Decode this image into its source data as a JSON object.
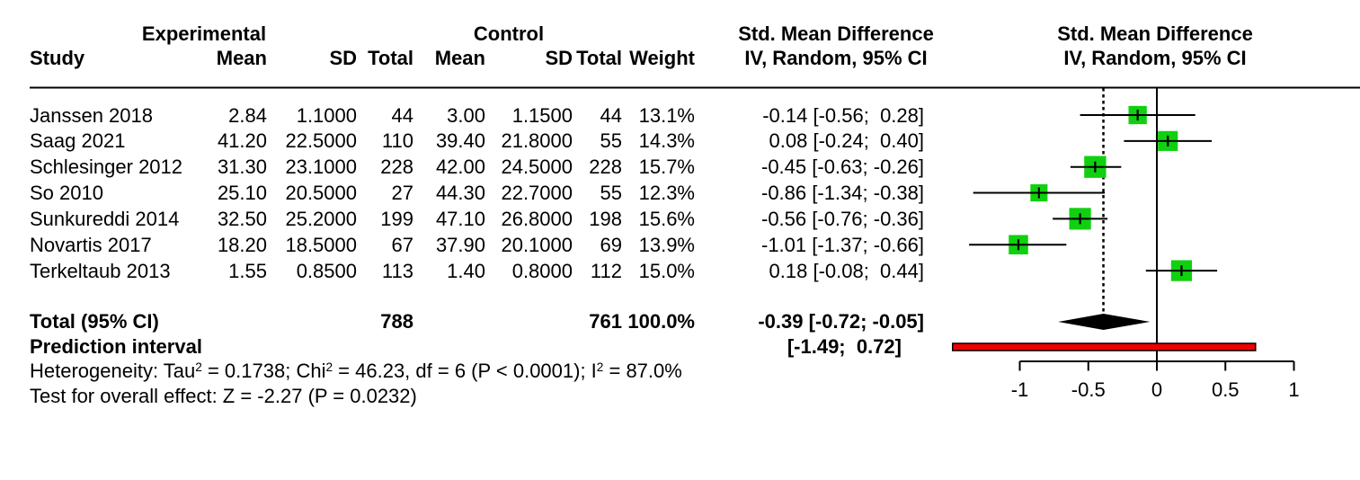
{
  "header": {
    "exp_group": "Experimental",
    "ctrl_group": "Control",
    "col_study": "Study",
    "col_mean": "Mean",
    "col_sd": "SD",
    "col_total": "Total",
    "col_weight": "Weight",
    "smd_title": "Std. Mean Difference",
    "smd_subtitle": "IV, Random, 95% CI"
  },
  "totals_row": {
    "label": "Total (95% CI)",
    "exp_total": "788",
    "ctrl_total": "761",
    "weight": "100.0%",
    "smd_ci": "-0.39 [-0.72; -0.05]",
    "prediction_label": "Prediction interval",
    "prediction_ci": "[-1.49;  0.72]"
  },
  "footnotes": {
    "heterogeneity_segments": [
      {
        "text": "Heterogeneity: Tau"
      },
      {
        "text": "2",
        "sup": true
      },
      {
        "text": " = 0.1738; Chi"
      },
      {
        "text": "2",
        "sup": true
      },
      {
        "text": " = 46.23, df = 6 (P < 0.0001); I"
      },
      {
        "text": "2",
        "sup": true
      },
      {
        "text": " = 87.0%"
      }
    ],
    "overall_effect": "Test for overall effect: Z = -2.27 (P = 0.0232)"
  },
  "chart_data": {
    "type": "scatter",
    "subtype": "forest_plot_meta_analysis",
    "title": "Std. Mean Difference, IV, Random, 95% CI",
    "x_axis": {
      "label": "",
      "ticks": [
        -1,
        -0.5,
        0,
        0.5,
        1
      ],
      "tick_labels": [
        "-1",
        "-0.5",
        "0",
        "0.5",
        "1"
      ],
      "xlim": [
        -1.55,
        1.1
      ]
    },
    "zero_line_x": 0,
    "pooled_line_x": -0.39,
    "studies": [
      {
        "name": "Janssen 2018",
        "exp_mean": 2.84,
        "exp_sd": 1.1,
        "exp_n": 44,
        "ctrl_mean": 3.0,
        "ctrl_sd": 1.15,
        "ctrl_n": 44,
        "weight_pct": 13.1,
        "smd": -0.14,
        "ci_low": -0.56,
        "ci_high": 0.28
      },
      {
        "name": "Saag 2021",
        "exp_mean": 41.2,
        "exp_sd": 22.5,
        "exp_n": 110,
        "ctrl_mean": 39.4,
        "ctrl_sd": 21.8,
        "ctrl_n": 55,
        "weight_pct": 14.3,
        "smd": 0.08,
        "ci_low": -0.24,
        "ci_high": 0.4
      },
      {
        "name": "Schlesinger 2012",
        "exp_mean": 31.3,
        "exp_sd": 23.1,
        "exp_n": 228,
        "ctrl_mean": 42.0,
        "ctrl_sd": 24.5,
        "ctrl_n": 228,
        "weight_pct": 15.7,
        "smd": -0.45,
        "ci_low": -0.63,
        "ci_high": -0.26
      },
      {
        "name": "So 2010",
        "exp_mean": 25.1,
        "exp_sd": 20.5,
        "exp_n": 27,
        "ctrl_mean": 44.3,
        "ctrl_sd": 22.7,
        "ctrl_n": 55,
        "weight_pct": 12.3,
        "smd": -0.86,
        "ci_low": -1.34,
        "ci_high": -0.38
      },
      {
        "name": "Sunkureddi 2014",
        "exp_mean": 32.5,
        "exp_sd": 25.2,
        "exp_n": 199,
        "ctrl_mean": 47.1,
        "ctrl_sd": 26.8,
        "ctrl_n": 198,
        "weight_pct": 15.6,
        "smd": -0.56,
        "ci_low": -0.76,
        "ci_high": -0.36
      },
      {
        "name": "Novartis 2017",
        "exp_mean": 18.2,
        "exp_sd": 18.5,
        "exp_n": 67,
        "ctrl_mean": 37.9,
        "ctrl_sd": 20.1,
        "ctrl_n": 69,
        "weight_pct": 13.9,
        "smd": -1.01,
        "ci_low": -1.37,
        "ci_high": -0.66
      },
      {
        "name": "Terkeltaub 2013",
        "exp_mean": 1.55,
        "exp_sd": 0.85,
        "exp_n": 113,
        "ctrl_mean": 1.4,
        "ctrl_sd": 0.8,
        "ctrl_n": 112,
        "weight_pct": 15.0,
        "smd": 0.18,
        "ci_low": -0.08,
        "ci_high": 0.44
      }
    ],
    "total": {
      "exp_n": 788,
      "ctrl_n": 761,
      "weight_pct": 100.0,
      "smd": -0.39,
      "ci_low": -0.72,
      "ci_high": -0.05
    },
    "prediction_interval": {
      "ci_low": -1.49,
      "ci_high": 0.72
    },
    "legend": "none",
    "grid": false,
    "colors": {
      "square": "#10D010",
      "diamond": "#000000",
      "prediction_bar": "#EE0000",
      "line": "#000000"
    }
  }
}
